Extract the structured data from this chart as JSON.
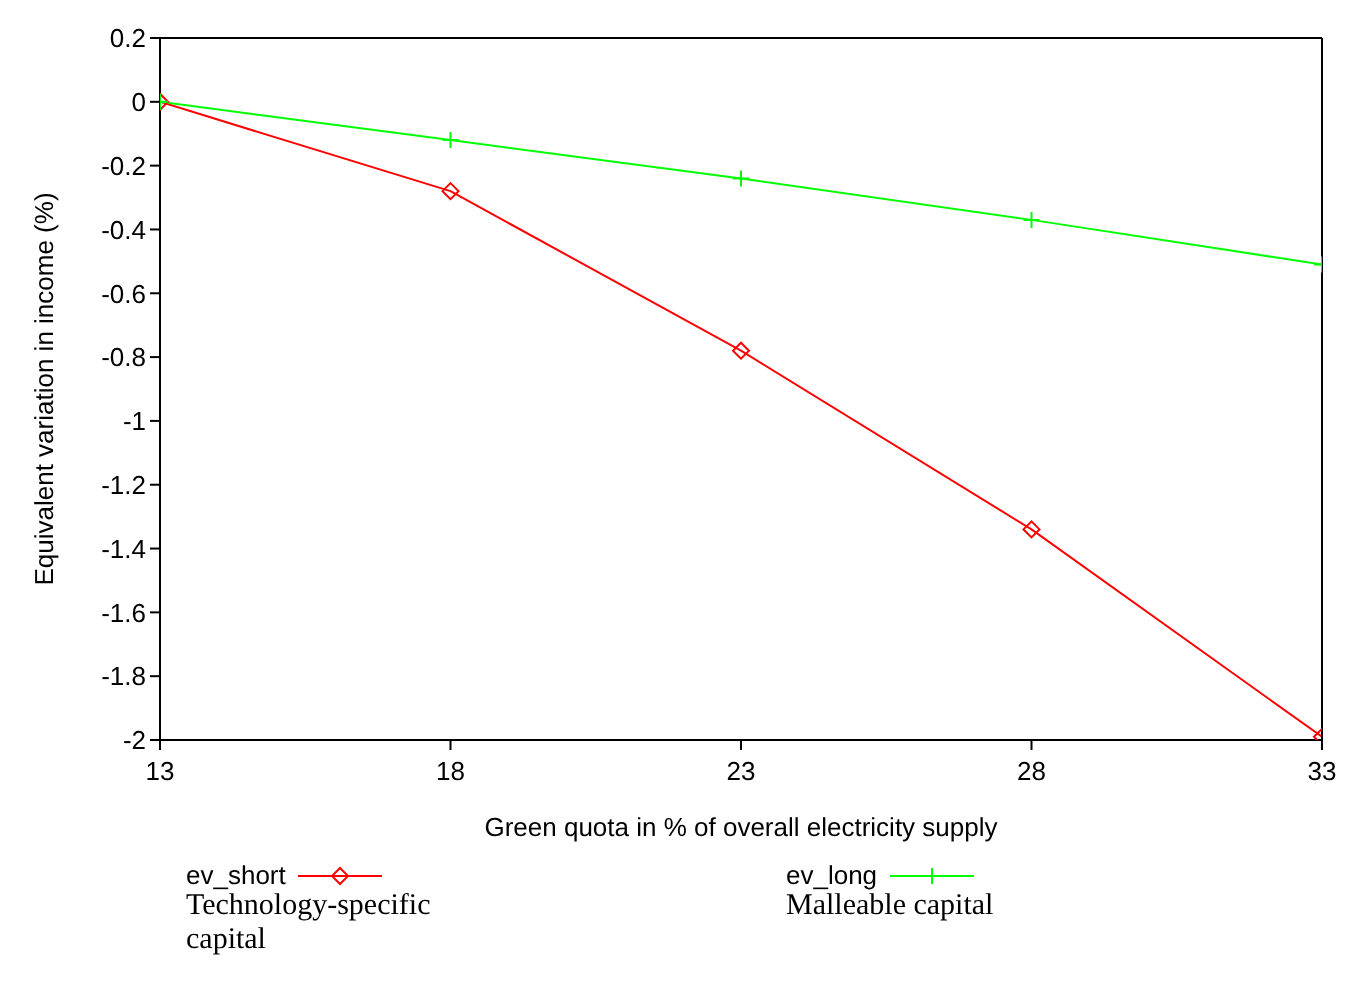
{
  "chart_data": {
    "type": "line",
    "xlabel": "Green quota in % of overall electricity supply",
    "ylabel": "Equivalent variation in income  (%)",
    "x": [
      13,
      18,
      23,
      28,
      33
    ],
    "xlim": [
      13,
      33
    ],
    "xticks": [
      13,
      18,
      23,
      28,
      33
    ],
    "ylim": [
      -2,
      0.2
    ],
    "yticks": [
      -2,
      -1.8,
      -1.6,
      -1.4,
      -1.2,
      -1,
      -0.8,
      -0.6,
      -0.4,
      -0.2,
      0,
      0.2
    ],
    "series": [
      {
        "name": "ev_short",
        "color": "#ff0000",
        "marker": "diamond",
        "values": [
          0,
          -0.28,
          -0.78,
          -1.34,
          -1.99
        ]
      },
      {
        "name": "ev_long",
        "color": "#00ff00",
        "marker": "cross",
        "values": [
          0,
          -0.12,
          -0.24,
          -0.37,
          -0.51
        ]
      }
    ],
    "legend": "bottom",
    "grid": false,
    "annotations": [
      "Technology-specific capital",
      "Malleable capital"
    ]
  }
}
